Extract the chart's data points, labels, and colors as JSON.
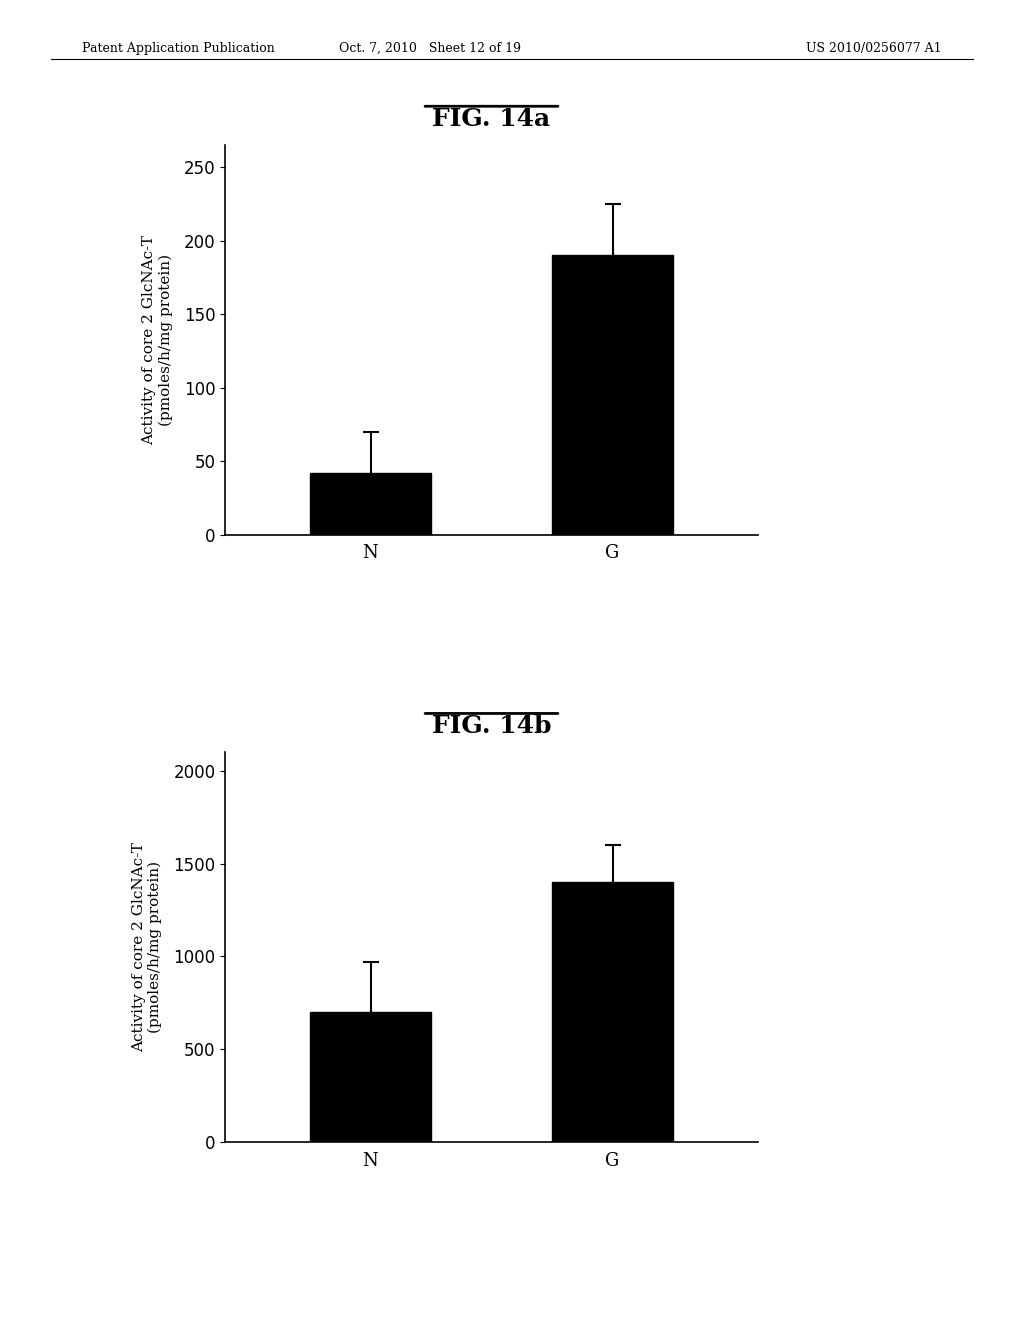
{
  "header_left": "Patent Application Publication",
  "header_center": "Oct. 7, 2010   Sheet 12 of 19",
  "header_right": "US 2010/0256077 A1",
  "fig_a": {
    "title": "FIG. 14a",
    "categories": [
      "N",
      "G"
    ],
    "values": [
      42,
      190
    ],
    "errors": [
      28,
      35
    ],
    "ylabel_line1": "Activity of core 2 GlcNAc-T",
    "ylabel_line2": "(pmoles/h/mg protein)",
    "yticks": [
      0,
      50,
      100,
      150,
      200,
      250
    ],
    "ylim": [
      0,
      265
    ],
    "bar_color": "#000000",
    "bar_width": 0.5
  },
  "fig_b": {
    "title": "FIG. 14b",
    "categories": [
      "N",
      "G"
    ],
    "values": [
      700,
      1400
    ],
    "errors": [
      270,
      200
    ],
    "ylabel_line1": "Activity of core 2 GlcNAc-T",
    "ylabel_line2": "(pmoles/h/mg protein)",
    "yticks": [
      0,
      500,
      1000,
      1500,
      2000
    ],
    "ylim": [
      0,
      2100
    ],
    "bar_color": "#000000",
    "bar_width": 0.5
  },
  "background_color": "#ffffff",
  "title_fontsize": 18,
  "axis_fontsize": 11,
  "tick_fontsize": 11,
  "header_fontsize": 9
}
